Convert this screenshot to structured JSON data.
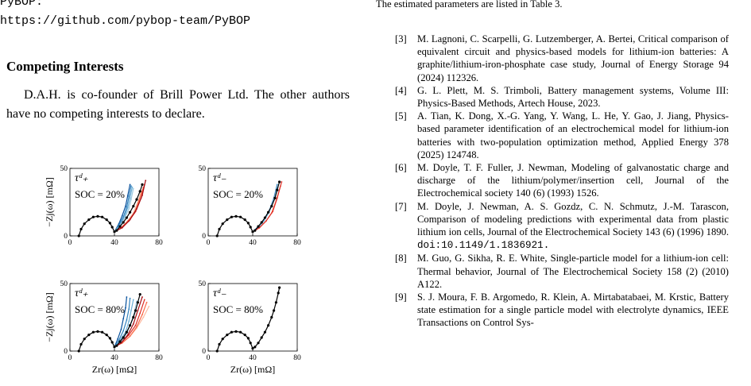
{
  "left": {
    "pybop_label": "PyBOP:",
    "url": "https://github.com/pybop-team/PyBOP",
    "competing_heading": "Competing Interests",
    "competing_text": "D.A.H. is co-founder of Brill Power Ltd. The other authors have no competing interests to declare."
  },
  "right": {
    "intro": "The estimated parameters are listed in Table 3.",
    "references": [
      {
        "label": "[3]",
        "text": "M. Lagnoni, C. Scarpelli, G. Lutzemberger, A. Bertei, Critical comparison of equivalent circuit and physics-based models for lithium-ion batteries: A graphite/lithium-iron-phosphate case study, Journal of Energy Storage 94 (2024) 112326."
      },
      {
        "label": "[4]",
        "text": "G. L. Plett, M. S. Trimboli, Battery management systems, Volume III: Physics-Based Methods, Artech House, 2023."
      },
      {
        "label": "[5]",
        "text": "A. Tian, K. Dong, X.-G. Yang, Y. Wang, L. He, Y. Gao, J. Jiang, Physics-based parameter identification of an electrochemical model for lithium-ion batteries with two-population optimization method, Applied Energy 378 (2025) 124748."
      },
      {
        "label": "[6]",
        "text": "M. Doyle, T. F. Fuller, J. Newman, Modeling of galvanostatic charge and discharge of the lithium/polymer/insertion cell, Journal of the Electrochemical society 140 (6) (1993) 1526."
      },
      {
        "label": "[7]",
        "text": "M. Doyle, J. Newman, A. S. Gozdz, C. N. Schmutz, J.-M. Tarascon, Comparison of modeling predictions with experimental data from plastic lithium ion cells, Journal of the Electrochemical Society 143 (6) (1996) 1890.",
        "doi": "doi:10.1149/1.1836921."
      },
      {
        "label": "[8]",
        "text": "M. Guo, G. Sikha, R. E. White, Single-particle model for a lithium-ion cell: Thermal behavior, Journal of The Electrochemical Society 158 (2) (2010) A122."
      },
      {
        "label": "[9]",
        "text": "S. J. Moura, F. B. Argomedo, R. Klein, A. Mirtabatabaei, M. Krstic, Battery state estimation for a single particle model with electrolyte dynamics, IEEE Transactions on Control Sys-"
      }
    ]
  },
  "chart_data": [
    {
      "type": "line",
      "label": "τᵈ₊",
      "soc": "SOC = 20%",
      "y_label": "−Zj(ω) [mΩ]",
      "xlim": [
        0,
        80
      ],
      "xticks": [
        0,
        40,
        80
      ],
      "ylim": [
        0,
        50
      ],
      "yticks": [
        0,
        50
      ],
      "series": [
        {
          "color": "#08519c",
          "x": [
            40,
            44,
            47,
            50,
            52,
            54
          ],
          "values": [
            3,
            9,
            15,
            22,
            30,
            38
          ]
        },
        {
          "color": "#3182bd",
          "x": [
            40,
            44,
            48,
            51,
            53,
            55
          ],
          "values": [
            3,
            8,
            14,
            21,
            29,
            37
          ]
        },
        {
          "color": "#6baed6",
          "x": [
            40,
            45,
            49,
            52,
            54,
            56
          ],
          "values": [
            3,
            8,
            14,
            21,
            28,
            36
          ]
        },
        {
          "color": "#9ecae1",
          "x": [
            40,
            45,
            49,
            53,
            55,
            57
          ],
          "values": [
            3,
            7,
            13,
            20,
            27,
            35
          ]
        },
        {
          "color": "#fcbba1",
          "x": [
            40,
            46,
            52,
            57,
            61,
            64
          ],
          "values": [
            3,
            6,
            11,
            17,
            25,
            33
          ]
        },
        {
          "color": "#fb6a4a",
          "x": [
            40,
            46,
            52,
            58,
            62,
            66
          ],
          "values": [
            3,
            6,
            11,
            17,
            26,
            36
          ]
        },
        {
          "color": "#de2d26",
          "x": [
            40,
            46,
            53,
            59,
            64,
            67
          ],
          "values": [
            3,
            6,
            11,
            18,
            28,
            38
          ]
        },
        {
          "color": "#a50f15",
          "x": [
            40,
            47,
            54,
            60,
            65,
            68
          ],
          "values": [
            3,
            6,
            12,
            20,
            30,
            41
          ]
        },
        {
          "color": "#000000",
          "x": [
            8,
            10,
            13,
            17,
            21,
            25,
            29,
            33,
            36,
            38,
            40,
            42,
            45,
            48,
            51,
            54,
            57,
            60,
            63,
            65
          ],
          "values": [
            0,
            5,
            9,
            12,
            14,
            14.5,
            14,
            12,
            9.5,
            6.5,
            3,
            4,
            7,
            10,
            13.5,
            17.5,
            22,
            27,
            33,
            38
          ]
        }
      ]
    },
    {
      "type": "line",
      "label": "τᵈ₋",
      "soc": "SOC = 20%",
      "xlim": [
        0,
        80
      ],
      "xticks": [
        0,
        40,
        80
      ],
      "ylim": [
        0,
        50
      ],
      "yticks": [
        0,
        50
      ],
      "series": [
        {
          "color": "#3182bd",
          "x": [
            40,
            45,
            50,
            55,
            59,
            62
          ],
          "values": [
            3,
            7,
            12,
            19,
            28,
            38
          ]
        },
        {
          "color": "#6baed6",
          "x": [
            40,
            45,
            50,
            55,
            59,
            62
          ],
          "values": [
            3,
            6,
            11,
            18,
            27,
            36
          ]
        },
        {
          "color": "#fb6a4a",
          "x": [
            40,
            46,
            52,
            57,
            61,
            65
          ],
          "values": [
            3,
            6,
            11,
            17,
            26,
            37
          ]
        },
        {
          "color": "#de2d26",
          "x": [
            40,
            46,
            52,
            58,
            62,
            66
          ],
          "values": [
            3,
            6,
            11,
            18,
            28,
            40
          ]
        },
        {
          "color": "#000000",
          "x": [
            8,
            10,
            13,
            17,
            21,
            25,
            29,
            33,
            36,
            38,
            40,
            42,
            45,
            48,
            51,
            54,
            57,
            60,
            62,
            64
          ],
          "values": [
            0,
            5,
            9,
            12,
            14,
            14.5,
            14,
            12,
            9.5,
            6.5,
            3,
            4,
            7,
            10,
            13.5,
            17.5,
            22,
            28,
            34,
            40
          ]
        }
      ]
    },
    {
      "type": "line",
      "label": "τᵈ₊",
      "soc": "SOC = 80%",
      "y_label": "−Zj(ω) [mΩ]",
      "x_label": "Zr(ω) [mΩ]",
      "xlim": [
        0,
        80
      ],
      "xticks": [
        0,
        40,
        80
      ],
      "ylim": [
        0,
        50
      ],
      "yticks": [
        0,
        50
      ],
      "series": [
        {
          "color": "#08519c",
          "x": [
            40,
            43,
            46,
            48,
            50,
            51
          ],
          "values": [
            3,
            9,
            16,
            24,
            32,
            40
          ]
        },
        {
          "color": "#3182bd",
          "x": [
            40,
            44,
            48,
            51,
            53,
            54
          ],
          "values": [
            3,
            8,
            15,
            23,
            31,
            39
          ]
        },
        {
          "color": "#6baed6",
          "x": [
            40,
            45,
            50,
            53,
            55,
            57
          ],
          "values": [
            3,
            8,
            14,
            22,
            30,
            38
          ]
        },
        {
          "color": "#9ecae1",
          "x": [
            40,
            46,
            51,
            55,
            58,
            60
          ],
          "values": [
            3,
            7,
            13,
            21,
            29,
            37
          ]
        },
        {
          "color": "#fcbba1",
          "x": [
            40,
            47,
            54,
            60,
            66,
            71
          ],
          "values": [
            3,
            6,
            11,
            17,
            25,
            33
          ]
        },
        {
          "color": "#fb6a4a",
          "x": [
            40,
            47,
            54,
            60,
            65,
            69
          ],
          "values": [
            3,
            6,
            11,
            18,
            27,
            36
          ]
        },
        {
          "color": "#de2d26",
          "x": [
            40,
            46,
            53,
            59,
            63,
            67
          ],
          "values": [
            3,
            6,
            12,
            19,
            28,
            38
          ]
        },
        {
          "color": "#a50f15",
          "x": [
            40,
            46,
            52,
            57,
            61,
            65
          ],
          "values": [
            3,
            6,
            12,
            20,
            30,
            40
          ]
        },
        {
          "color": "#000000",
          "x": [
            8,
            10,
            13,
            17,
            21,
            25,
            29,
            33,
            36,
            38,
            40,
            42,
            45,
            48,
            51,
            54,
            57,
            59,
            61,
            63
          ],
          "values": [
            0,
            5,
            9,
            12,
            14,
            14.5,
            14,
            12,
            9.5,
            6.5,
            3,
            4,
            7,
            10,
            14,
            19,
            25,
            30,
            36,
            42
          ]
        }
      ]
    },
    {
      "type": "line",
      "label": "τᵈ₋",
      "soc": "SOC = 80%",
      "x_label": "Zr(ω) [mΩ]",
      "xlim": [
        0,
        80
      ],
      "xticks": [
        0,
        40,
        80
      ],
      "ylim": [
        0,
        50
      ],
      "yticks": [
        0,
        50
      ],
      "series": [
        {
          "color": "#000000",
          "x": [
            8,
            10,
            13,
            17,
            21,
            25,
            29,
            33,
            36,
            38,
            40,
            42,
            45,
            48,
            51,
            54,
            57,
            59,
            61,
            63,
            64
          ],
          "values": [
            0,
            5,
            9,
            12,
            14,
            14.5,
            14,
            12,
            9.5,
            6,
            2,
            3,
            6,
            10,
            14,
            19,
            25,
            30,
            36,
            43,
            47
          ]
        }
      ]
    }
  ]
}
